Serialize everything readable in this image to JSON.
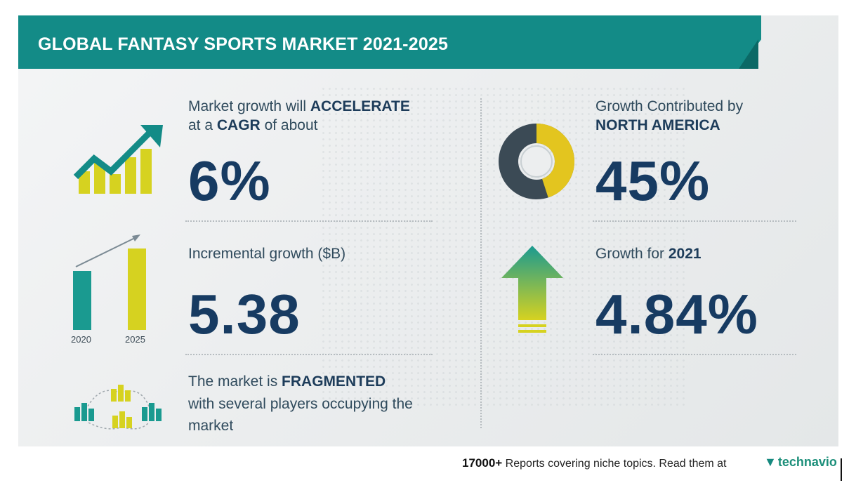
{
  "header": {
    "title": "GLOBAL FANTASY SPORTS MARKET 2021-2025"
  },
  "left": {
    "cagr": {
      "line1_pre": "Market growth will",
      "line1_bold": "ACCELERATE",
      "line2_pre": "at a",
      "line2_bold": "CAGR",
      "line2_post": "of about",
      "value": "6%"
    },
    "incremental": {
      "label": "Incremental growth ($B)",
      "value": "5.38",
      "bar_labels": [
        "2020",
        "2025"
      ]
    },
    "fragmented": {
      "line1_pre": "The market is",
      "line1_bold": "FRAGMENTED",
      "line2": "with several players occupying the",
      "line3": "market"
    }
  },
  "right": {
    "region": {
      "line1": "Growth Contributed by",
      "line2": "NORTH AMERICA",
      "value": "45%",
      "share": 0.45
    },
    "yoy": {
      "label_pre": "Growth for",
      "label_year": "2021",
      "value": "4.84%"
    }
  },
  "footer": {
    "count": "17000+",
    "text": "Reports covering niche topics. Read them at",
    "logo": "technavio"
  },
  "colors": {
    "teal": "#138b87",
    "navy": "#173b62",
    "yellow": "#e3c51f",
    "lime": "#d6d220",
    "dark_slate": "#3b4a55"
  },
  "icons": [
    "trend-up-chart-icon",
    "bar-growth-icon",
    "network-buildings-icon",
    "donut-chart-icon",
    "up-arrow-icon",
    "technavio-logo-icon"
  ]
}
